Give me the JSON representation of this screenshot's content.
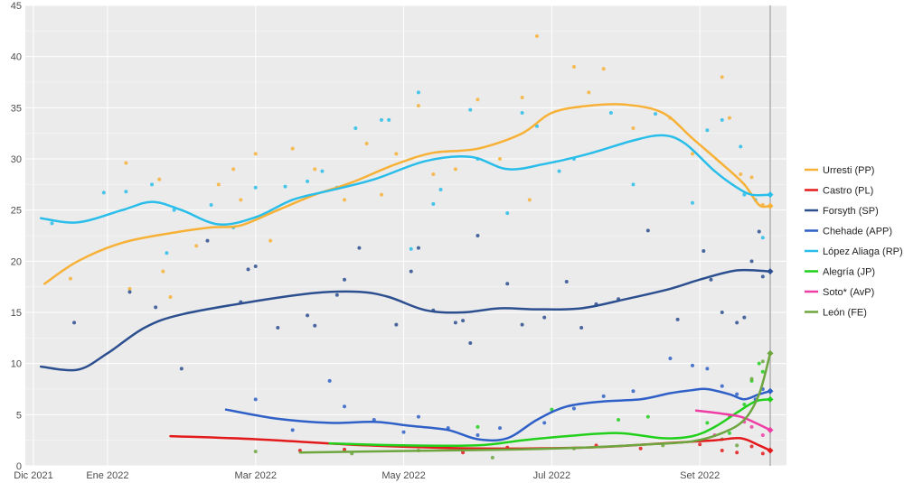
{
  "chart_data": {
    "type": "line",
    "title": "",
    "xlabel": "",
    "ylabel": "",
    "ylim": [
      0,
      45
    ],
    "y_ticks": [
      0,
      5,
      10,
      15,
      20,
      25,
      30,
      35,
      40,
      45
    ],
    "x_ticks": [
      {
        "label": "Dic 2021",
        "month": 0
      },
      {
        "label": "Ene 2022",
        "month": 1
      },
      {
        "label": "Mar 2022",
        "month": 3
      },
      {
        "label": "May 2022",
        "month": 5
      },
      {
        "label": "Jul 2022",
        "month": 7
      },
      {
        "label": "Set 2022",
        "month": 9
      }
    ],
    "x_range_months": [
      0,
      10.3
    ],
    "x_unit": "months since Dic 2021",
    "grid": true,
    "background": "#ebebeb",
    "gridline_color": "#ffffff",
    "legend_position": "right",
    "series": [
      {
        "name": "Urresti (PP)",
        "color": "#f7b136",
        "points": [
          [
            0.15,
            17.8
          ],
          [
            0.6,
            20
          ],
          [
            1.2,
            21.8
          ],
          [
            1.9,
            22.8
          ],
          [
            2.4,
            23.3
          ],
          [
            2.8,
            23.5
          ],
          [
            3.3,
            25
          ],
          [
            3.8,
            26.5
          ],
          [
            4.3,
            27.7
          ],
          [
            4.9,
            29.5
          ],
          [
            5.4,
            30.6
          ],
          [
            6.0,
            31
          ],
          [
            6.6,
            32.5
          ],
          [
            7.0,
            34.5
          ],
          [
            7.5,
            35.2
          ],
          [
            8.0,
            35.3
          ],
          [
            8.5,
            34.5
          ],
          [
            8.9,
            32
          ],
          [
            9.3,
            29.5
          ],
          [
            9.6,
            27.5
          ],
          [
            9.8,
            25.5
          ],
          [
            9.95,
            25.4
          ]
        ]
      },
      {
        "name": "Castro (PL)",
        "color": "#e31a1c",
        "points": [
          [
            1.85,
            2.9
          ],
          [
            3.0,
            2.6
          ],
          [
            4.5,
            2.0
          ],
          [
            6.0,
            1.7
          ],
          [
            7.5,
            1.8
          ],
          [
            8.5,
            2.2
          ],
          [
            9.2,
            2.5
          ],
          [
            9.55,
            2.7
          ],
          [
            9.8,
            2.0
          ],
          [
            9.95,
            1.5
          ]
        ]
      },
      {
        "name": "Forsyth (SP)",
        "color": "#2c4f8f",
        "points": [
          [
            0.1,
            9.7
          ],
          [
            0.6,
            9.4
          ],
          [
            1.0,
            11
          ],
          [
            1.5,
            13.5
          ],
          [
            2.0,
            14.8
          ],
          [
            3.0,
            16.1
          ],
          [
            3.8,
            16.9
          ],
          [
            4.4,
            17.0
          ],
          [
            4.8,
            16.5
          ],
          [
            5.3,
            15.2
          ],
          [
            5.8,
            15.0
          ],
          [
            6.3,
            15.4
          ],
          [
            6.8,
            15.3
          ],
          [
            7.4,
            15.4
          ],
          [
            8.0,
            16.3
          ],
          [
            8.6,
            17.3
          ],
          [
            9.0,
            18.2
          ],
          [
            9.5,
            19.1
          ],
          [
            9.95,
            19.0
          ]
        ]
      },
      {
        "name": "Chehade (APP)",
        "color": "#2e60c7",
        "points": [
          [
            2.6,
            5.5
          ],
          [
            3.3,
            4.6
          ],
          [
            4.0,
            4.2
          ],
          [
            4.6,
            4.3
          ],
          [
            5.1,
            3.9
          ],
          [
            5.6,
            3.5
          ],
          [
            6.0,
            2.6
          ],
          [
            6.4,
            2.7
          ],
          [
            6.8,
            4.5
          ],
          [
            7.2,
            5.8
          ],
          [
            7.7,
            6.3
          ],
          [
            8.2,
            6.5
          ],
          [
            8.6,
            7.1
          ],
          [
            8.9,
            7.4
          ],
          [
            9.1,
            7.5
          ],
          [
            9.4,
            7.0
          ],
          [
            9.6,
            6.5
          ],
          [
            9.8,
            7.0
          ],
          [
            9.95,
            7.3
          ]
        ]
      },
      {
        "name": "López Aliaga (RP)",
        "color": "#29bdea",
        "points": [
          [
            0.1,
            24.2
          ],
          [
            0.6,
            23.8
          ],
          [
            1.2,
            25.0
          ],
          [
            1.6,
            25.8
          ],
          [
            2.0,
            25.0
          ],
          [
            2.5,
            23.6
          ],
          [
            3.0,
            24.3
          ],
          [
            3.5,
            26.0
          ],
          [
            4.0,
            26.9
          ],
          [
            4.6,
            28.0
          ],
          [
            5.3,
            29.8
          ],
          [
            5.9,
            30.2
          ],
          [
            6.4,
            29.0
          ],
          [
            6.9,
            29.5
          ],
          [
            7.5,
            30.5
          ],
          [
            8.1,
            31.8
          ],
          [
            8.5,
            32.3
          ],
          [
            8.8,
            31.5
          ],
          [
            9.2,
            28.8
          ],
          [
            9.5,
            27.2
          ],
          [
            9.7,
            26.5
          ],
          [
            9.95,
            26.5
          ]
        ]
      },
      {
        "name": "Alegría (JP)",
        "color": "#21d01b",
        "points": [
          [
            4.0,
            2.2
          ],
          [
            5.0,
            2.0
          ],
          [
            6.0,
            2.0
          ],
          [
            6.6,
            2.5
          ],
          [
            7.2,
            2.9
          ],
          [
            7.9,
            3.2
          ],
          [
            8.5,
            2.7
          ],
          [
            8.9,
            2.9
          ],
          [
            9.2,
            3.8
          ],
          [
            9.5,
            5.2
          ],
          [
            9.75,
            6.3
          ],
          [
            9.95,
            6.5
          ]
        ]
      },
      {
        "name": "Soto* (AvP)",
        "color": "#ee3ea5",
        "points": [
          [
            8.95,
            5.4
          ],
          [
            9.3,
            5.1
          ],
          [
            9.55,
            4.8
          ],
          [
            9.75,
            4.2
          ],
          [
            9.95,
            3.5
          ]
        ]
      },
      {
        "name": "León (FE)",
        "color": "#6da63e",
        "points": [
          [
            3.6,
            1.3
          ],
          [
            4.5,
            1.4
          ],
          [
            5.5,
            1.5
          ],
          [
            6.5,
            1.6
          ],
          [
            7.5,
            1.8
          ],
          [
            8.3,
            2.1
          ],
          [
            8.9,
            2.4
          ],
          [
            9.3,
            3.2
          ],
          [
            9.6,
            4.5
          ],
          [
            9.8,
            7.0
          ],
          [
            9.95,
            11.0
          ]
        ]
      }
    ],
    "scatter_points": [
      {
        "series": 0,
        "pts": [
          [
            1.7,
            28
          ],
          [
            1.75,
            19
          ],
          [
            1.85,
            16.5
          ],
          [
            2.2,
            21.5
          ],
          [
            2.5,
            27.5
          ],
          [
            2.7,
            29
          ],
          [
            2.8,
            26
          ],
          [
            3.0,
            30.5
          ],
          [
            3.2,
            22
          ],
          [
            3.5,
            31
          ],
          [
            3.8,
            29
          ],
          [
            4.2,
            26
          ],
          [
            4.5,
            31.5
          ],
          [
            4.7,
            26.5
          ],
          [
            4.9,
            30.5
          ],
          [
            5.2,
            35.2
          ],
          [
            5.4,
            28.5
          ],
          [
            5.7,
            29
          ],
          [
            6.0,
            35.8
          ],
          [
            6.3,
            30
          ],
          [
            6.6,
            36
          ],
          [
            6.7,
            26
          ],
          [
            6.8,
            42
          ],
          [
            7.3,
            39
          ],
          [
            7.5,
            36.5
          ],
          [
            7.7,
            38.8
          ],
          [
            8.1,
            33
          ],
          [
            8.6,
            34
          ],
          [
            8.9,
            30.5
          ],
          [
            9.3,
            38
          ],
          [
            9.4,
            34
          ],
          [
            9.55,
            28.5
          ],
          [
            9.7,
            28.2
          ],
          [
            9.85,
            25.5
          ],
          [
            0.5,
            18.3
          ],
          [
            1.25,
            29.6
          ],
          [
            1.3,
            17.3
          ]
        ]
      },
      {
        "series": 1,
        "pts": [
          [
            3.6,
            1.5
          ],
          [
            4.2,
            1.6
          ],
          [
            5.8,
            1.3
          ],
          [
            6.4,
            1.8
          ],
          [
            7.6,
            2.0
          ],
          [
            8.2,
            1.7
          ],
          [
            9.0,
            2.1
          ],
          [
            9.3,
            1.5
          ],
          [
            9.5,
            1.3
          ],
          [
            9.7,
            1.9
          ],
          [
            9.85,
            1.2
          ]
        ]
      },
      {
        "series": 2,
        "pts": [
          [
            0.55,
            14
          ],
          [
            1.3,
            17
          ],
          [
            1.65,
            15.5
          ],
          [
            2.0,
            9.5
          ],
          [
            2.35,
            22
          ],
          [
            2.8,
            16
          ],
          [
            2.9,
            19.2
          ],
          [
            3.0,
            19.5
          ],
          [
            3.3,
            13.5
          ],
          [
            3.7,
            14.7
          ],
          [
            3.8,
            13.7
          ],
          [
            4.1,
            16.7
          ],
          [
            4.2,
            18.2
          ],
          [
            4.4,
            21.3
          ],
          [
            4.9,
            13.8
          ],
          [
            5.1,
            19
          ],
          [
            5.2,
            21.3
          ],
          [
            5.4,
            15.2
          ],
          [
            5.7,
            14
          ],
          [
            5.8,
            14.2
          ],
          [
            5.9,
            12
          ],
          [
            6.0,
            22.5
          ],
          [
            6.4,
            17.8
          ],
          [
            6.6,
            13.8
          ],
          [
            6.9,
            14.5
          ],
          [
            7.2,
            18
          ],
          [
            7.4,
            13.5
          ],
          [
            7.6,
            15.8
          ],
          [
            7.9,
            16.3
          ],
          [
            8.3,
            23
          ],
          [
            8.7,
            14.3
          ],
          [
            9.05,
            21
          ],
          [
            9.15,
            18.2
          ],
          [
            9.3,
            15
          ],
          [
            9.5,
            14
          ],
          [
            9.6,
            14.5
          ],
          [
            9.7,
            20
          ],
          [
            9.8,
            22.9
          ],
          [
            9.85,
            18.5
          ]
        ]
      },
      {
        "series": 3,
        "pts": [
          [
            3.0,
            6.5
          ],
          [
            3.5,
            3.5
          ],
          [
            4.0,
            8.3
          ],
          [
            4.2,
            5.8
          ],
          [
            4.6,
            4.5
          ],
          [
            5.0,
            3.3
          ],
          [
            5.2,
            4.8
          ],
          [
            5.6,
            3.7
          ],
          [
            6.0,
            3.0
          ],
          [
            6.3,
            3.7
          ],
          [
            6.9,
            4.2
          ],
          [
            7.3,
            5.6
          ],
          [
            7.7,
            6.8
          ],
          [
            8.1,
            7.3
          ],
          [
            8.6,
            10.5
          ],
          [
            8.9,
            9.8
          ],
          [
            9.1,
            9.5
          ],
          [
            9.3,
            7.8
          ],
          [
            9.5,
            7.0
          ],
          [
            9.75,
            6.5
          ],
          [
            9.85,
            7.5
          ]
        ]
      },
      {
        "series": 4,
        "pts": [
          [
            0.25,
            23.7
          ],
          [
            0.95,
            26.7
          ],
          [
            1.25,
            26.8
          ],
          [
            1.6,
            27.5
          ],
          [
            1.8,
            20.8
          ],
          [
            1.9,
            25
          ],
          [
            2.4,
            25.5
          ],
          [
            2.7,
            23.3
          ],
          [
            3.0,
            27.2
          ],
          [
            3.4,
            27.3
          ],
          [
            3.7,
            27.8
          ],
          [
            3.9,
            28.8
          ],
          [
            4.1,
            27.2
          ],
          [
            4.35,
            33
          ],
          [
            4.7,
            33.8
          ],
          [
            4.8,
            33.8
          ],
          [
            5.1,
            21.2
          ],
          [
            5.2,
            36.5
          ],
          [
            5.4,
            25.6
          ],
          [
            5.5,
            27
          ],
          [
            5.9,
            34.8
          ],
          [
            6.0,
            30
          ],
          [
            6.4,
            24.7
          ],
          [
            6.6,
            34.5
          ],
          [
            6.8,
            33.2
          ],
          [
            7.1,
            28.8
          ],
          [
            7.3,
            30
          ],
          [
            7.8,
            34.5
          ],
          [
            8.1,
            27.5
          ],
          [
            8.4,
            34.4
          ],
          [
            8.9,
            25.7
          ],
          [
            9.1,
            32.8
          ],
          [
            9.3,
            33.8
          ],
          [
            9.55,
            31.2
          ],
          [
            9.6,
            26.5
          ],
          [
            9.75,
            26
          ],
          [
            9.85,
            22.3
          ]
        ]
      },
      {
        "series": 5,
        "pts": [
          [
            6.0,
            3.8
          ],
          [
            7.0,
            5.5
          ],
          [
            7.9,
            4.5
          ],
          [
            8.3,
            4.8
          ],
          [
            9.1,
            4.2
          ],
          [
            9.4,
            3.2
          ],
          [
            9.6,
            6.0
          ],
          [
            9.7,
            8.3
          ],
          [
            9.8,
            10.0
          ],
          [
            9.85,
            9.2
          ]
        ]
      },
      {
        "series": 6,
        "pts": [
          [
            9.2,
            3.0
          ],
          [
            9.4,
            4.8
          ],
          [
            9.6,
            4.3
          ],
          [
            9.7,
            3.8
          ],
          [
            9.85,
            3.0
          ]
        ]
      },
      {
        "series": 7,
        "pts": [
          [
            3.0,
            1.4
          ],
          [
            4.3,
            1.2
          ],
          [
            5.2,
            1.5
          ],
          [
            6.2,
            0.8
          ],
          [
            7.3,
            1.7
          ],
          [
            8.5,
            2.0
          ],
          [
            9.3,
            2.6
          ],
          [
            9.5,
            2.0
          ],
          [
            9.7,
            8.5
          ],
          [
            9.85,
            10.2
          ]
        ]
      }
    ],
    "endpoints": [
      {
        "series": 0,
        "value": 25.4
      },
      {
        "series": 1,
        "value": 1.5
      },
      {
        "series": 2,
        "value": 19.0
      },
      {
        "series": 3,
        "value": 7.3
      },
      {
        "series": 4,
        "value": 26.5
      },
      {
        "series": 5,
        "value": 6.5
      },
      {
        "series": 6,
        "value": 3.5
      },
      {
        "series": 7,
        "value": 11.0
      }
    ]
  }
}
